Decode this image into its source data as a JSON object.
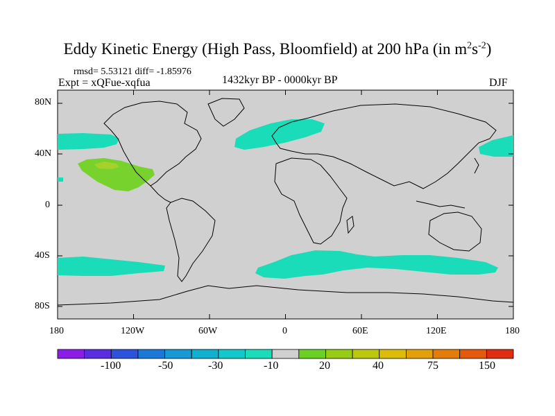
{
  "title": {
    "main": "Eddy Kinetic Energy (High Pass, Bloomfield) at 200 hPa (in m",
    "sup1": "2",
    "mid": "s",
    "sup2": "-2",
    "end": ")"
  },
  "stats": "rmsd= 5.53121  diff= -1.85976",
  "experiment": "Expt = xQFue-xqfua",
  "period": "1432kyr BP - 0000kyr BP",
  "season": "DJF",
  "lat_labels": [
    "80N",
    "40N",
    "0",
    "40S",
    "80S"
  ],
  "lon_labels": [
    "180",
    "120W",
    "60W",
    "0",
    "60E",
    "120E",
    "180"
  ],
  "colorbar": {
    "labels": [
      "-100",
      "-50",
      "-30",
      "-10",
      "20",
      "40",
      "75",
      "150"
    ],
    "colors": [
      "#8a1ee6",
      "#5a2ee0",
      "#2e52dc",
      "#1a78d8",
      "#1898d4",
      "#10b0d0",
      "#12c8cc",
      "#1adcb8",
      "#d0d0d0",
      "#6ad024",
      "#96cc14",
      "#bcc80c",
      "#dcbc08",
      "#e4a008",
      "#e47c08",
      "#e45a0a",
      "#e02c10"
    ]
  },
  "map": {
    "ocean_color": "#d0d0d0",
    "positive_fill": "#78d22e",
    "negative_fill": "#1adcb8",
    "peak_fill": "#a6d02a"
  }
}
